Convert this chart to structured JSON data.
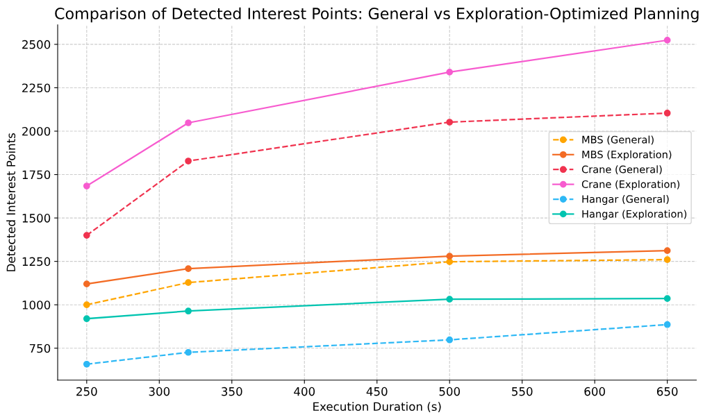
{
  "chart_data": {
    "type": "line",
    "title": "Comparison of Detected Interest Points: General vs Exploration-Optimized Planning",
    "xlabel": "Execution Duration (s)",
    "ylabel": "Detected Interest Points",
    "x": [
      250,
      320,
      500,
      650
    ],
    "series": [
      {
        "name": "MBS (General)",
        "color": "#ffa500",
        "line_style": "dashed",
        "values": [
          1000,
          1128,
          1248,
          1260
        ]
      },
      {
        "name": "MBS (Exploration)",
        "color": "#f36b24",
        "line_style": "solid",
        "values": [
          1120,
          1208,
          1280,
          1312
        ]
      },
      {
        "name": "Crane (General)",
        "color": "#f0334f",
        "line_style": "dashed",
        "values": [
          1400,
          1828,
          2052,
          2104
        ]
      },
      {
        "name": "Crane (Exploration)",
        "color": "#f75bcf",
        "line_style": "solid",
        "values": [
          1684,
          2048,
          2340,
          2524
        ]
      },
      {
        "name": "Hangar (General)",
        "color": "#2db8f5",
        "line_style": "dashed",
        "values": [
          658,
          726,
          798,
          886
        ]
      },
      {
        "name": "Hangar (Exploration)",
        "color": "#00c4b0",
        "line_style": "solid",
        "values": [
          920,
          964,
          1032,
          1036
        ]
      }
    ],
    "xlim": [
      230,
      670
    ],
    "xticks": [
      250,
      300,
      350,
      400,
      450,
      500,
      550,
      600,
      650
    ],
    "ylim": [
      566,
      2612
    ],
    "yticks": [
      750,
      1000,
      1250,
      1500,
      1750,
      2000,
      2250,
      2500
    ],
    "grid": true,
    "legend": "right",
    "marker": "circle"
  }
}
